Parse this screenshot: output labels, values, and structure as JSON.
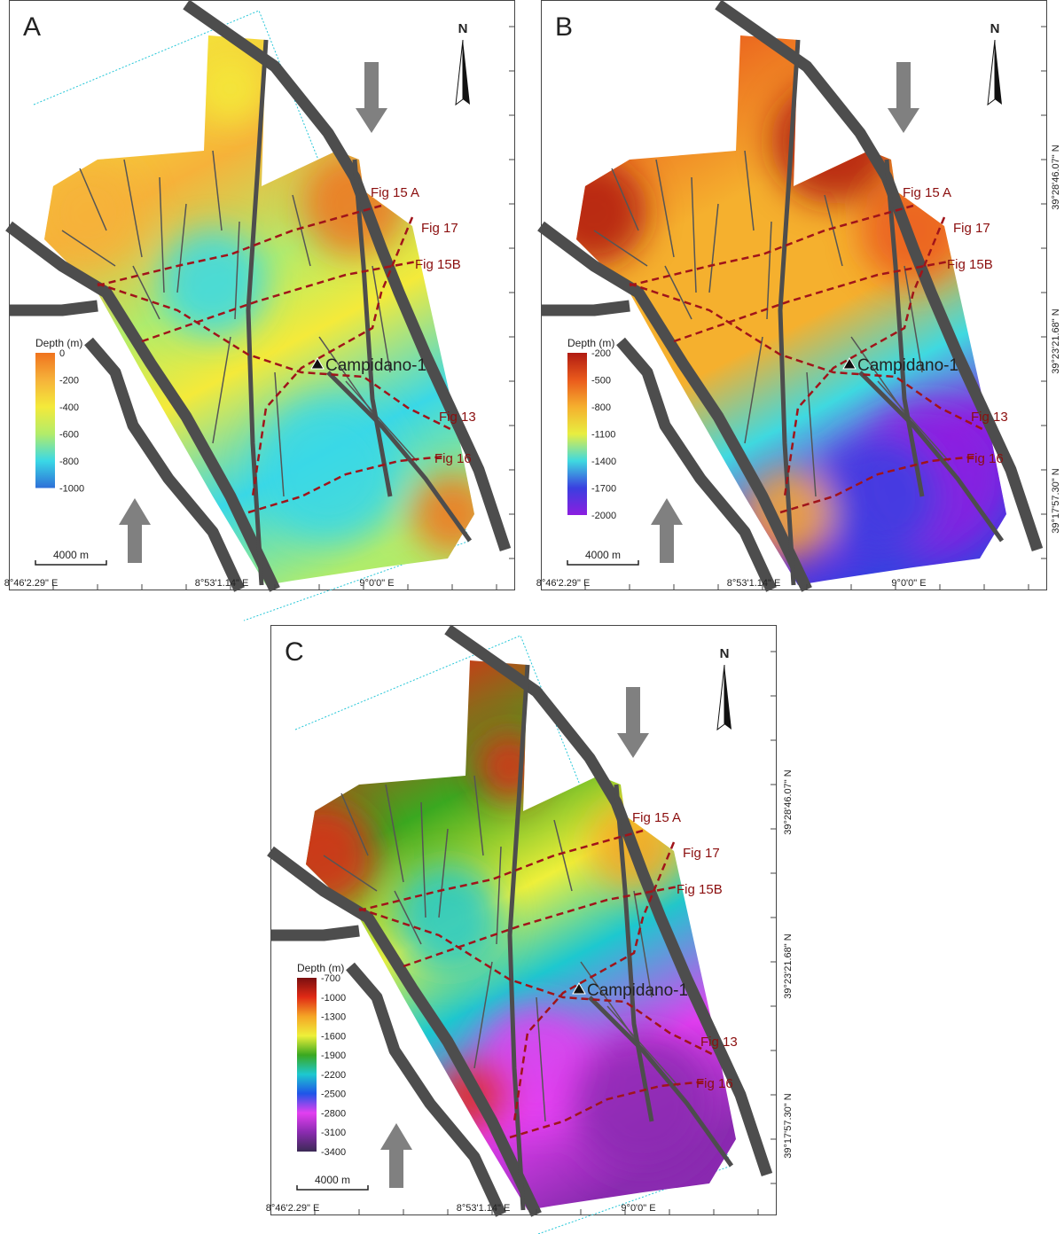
{
  "x_axis_labels": [
    "8°46'2.29\" E",
    "8°53'1.14\" E",
    "9°0'0\" E"
  ],
  "y_axis_labels": [
    "39°28'46.07\" N",
    "39°23'21.68\" N",
    "39°17'57.30\" N"
  ],
  "north_label": "N",
  "well_label": "Campidano-1",
  "scale_label": "4000 m",
  "section_labels": [
    "Fig 15 A",
    "Fig 17",
    "Fig 15B",
    "Fig 13",
    "Fig 16"
  ],
  "colors": {
    "section_line": "#a0141a",
    "fault": "#4d4d4d",
    "survey_outline": "#27c7d8",
    "stress_arrow": "#808080"
  },
  "panels": [
    {
      "id": "A",
      "letter": "A",
      "show_y_labels": false,
      "colorbar": {
        "title": "Depth (m)",
        "ticks": [
          "0",
          "-200",
          "-400",
          "-600",
          "-800",
          "-1000"
        ],
        "colors": [
          "#f0731e",
          "#f6b23a",
          "#f4ea3a",
          "#b2ec6a",
          "#3ad8e6",
          "#2e6fd8"
        ]
      }
    },
    {
      "id": "B",
      "letter": "B",
      "show_y_labels": true,
      "colorbar": {
        "title": "Depth (m)",
        "ticks": [
          "-200",
          "-500",
          "-800",
          "-1100",
          "-1400",
          "-1700",
          "-2000"
        ],
        "colors": [
          "#b01b12",
          "#ea5a1c",
          "#f5b02e",
          "#e8ee40",
          "#3fd9e0",
          "#3a3fe0",
          "#8c1ee0"
        ]
      }
    },
    {
      "id": "C",
      "letter": "C",
      "show_y_labels": true,
      "colorbar": {
        "title": "Depth (m)",
        "ticks": [
          "-700",
          "-1000",
          "-1300",
          "-1600",
          "-1900",
          "-2200",
          "-2500",
          "-2800",
          "-3100",
          "-3400"
        ],
        "colors": [
          "#7a0f10",
          "#e02a15",
          "#f5a525",
          "#eef03a",
          "#3aa820",
          "#1dc8cf",
          "#1f55e8",
          "#e23ff0",
          "#8a2bb0",
          "#3b2a55"
        ]
      }
    }
  ]
}
